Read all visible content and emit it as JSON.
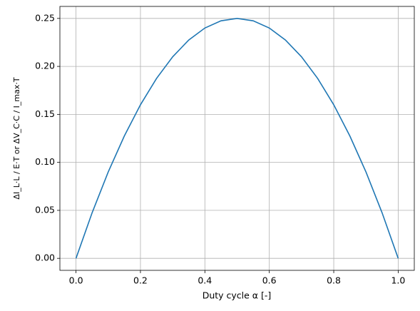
{
  "chart_data": {
    "type": "line",
    "xlabel": "Duty cycle α [-]",
    "ylabel": "ΔI_L·L / E·T  or  ΔV_C·C / I_max·T",
    "x": [
      0,
      0.05,
      0.1,
      0.15,
      0.2,
      0.25,
      0.3,
      0.35,
      0.4,
      0.45,
      0.5,
      0.55,
      0.6,
      0.65,
      0.7,
      0.75,
      0.8,
      0.85,
      0.9,
      0.95,
      1
    ],
    "series": [
      {
        "color": "#1f77b4",
        "values": [
          0,
          0.0475,
          0.09,
          0.1275,
          0.16,
          0.1875,
          0.21,
          0.2275,
          0.24,
          0.2475,
          0.25,
          0.2475,
          0.24,
          0.2275,
          0.21,
          0.1875,
          0.16,
          0.1275,
          0.09,
          0.0475,
          0
        ]
      }
    ],
    "xlim": [
      -0.05,
      1.05
    ],
    "ylim": [
      -0.0125,
      0.2625
    ],
    "xticks": [
      {
        "value": 0,
        "label": "0.0"
      },
      {
        "value": 0.2,
        "label": "0.2"
      },
      {
        "value": 0.4,
        "label": "0.4"
      },
      {
        "value": 0.6,
        "label": "0.6"
      },
      {
        "value": 0.8,
        "label": "0.8"
      },
      {
        "value": 1,
        "label": "1.0"
      }
    ],
    "yticks": [
      {
        "value": 0,
        "label": "0.00"
      },
      {
        "value": 0.05,
        "label": "0.05"
      },
      {
        "value": 0.1,
        "label": "0.10"
      },
      {
        "value": 0.15,
        "label": "0.15"
      },
      {
        "value": 0.2,
        "label": "0.20"
      },
      {
        "value": 0.25,
        "label": "0.25"
      }
    ],
    "grid": true
  }
}
